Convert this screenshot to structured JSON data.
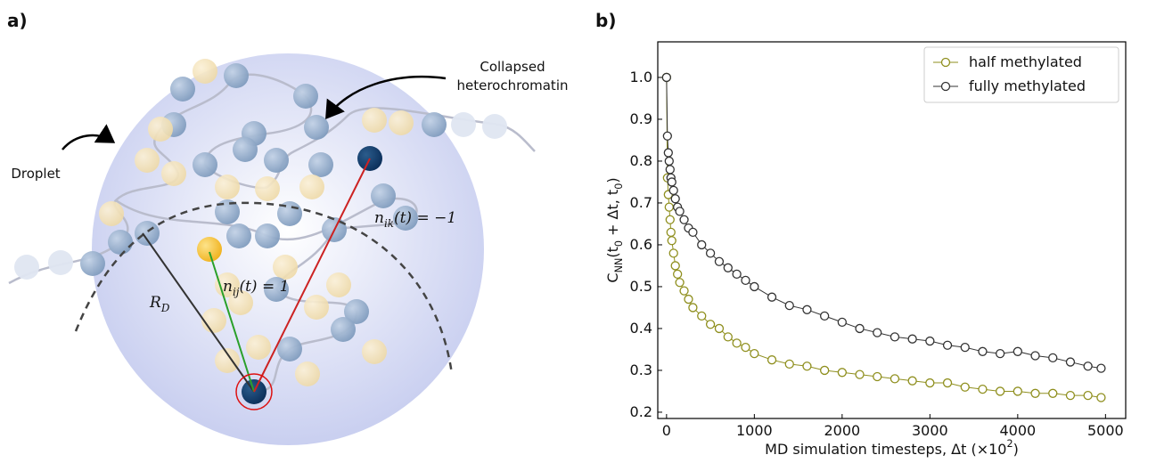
{
  "diagram": {
    "panel_label": "a)",
    "annotations": [
      "Collapsed",
      "heterochromatin",
      "Droplet",
      "n_{ij}(t) = 1",
      "n_{ik}(t) = −1",
      "R_D"
    ]
  },
  "chart_data": {
    "type": "scatter",
    "panel_label": "b)",
    "xlabel": "MD simulation timesteps, Δt (×10^2)",
    "ylabel": "C_{NN}(t_0 + Δt, t_0)",
    "x": [
      0,
      10,
      20,
      30,
      40,
      50,
      60,
      80,
      100,
      125,
      150,
      200,
      250,
      300,
      400,
      500,
      600,
      700,
      800,
      900,
      1000,
      1200,
      1400,
      1600,
      1800,
      2000,
      2200,
      2400,
      2600,
      2800,
      3000,
      3200,
      3400,
      3600,
      3800,
      4000,
      4200,
      4400,
      4600,
      4800,
      4950
    ],
    "series": [
      {
        "name": "half methylated",
        "color": "#8f8f1e",
        "values": [
          1.0,
          0.76,
          0.72,
          0.69,
          0.66,
          0.63,
          0.61,
          0.58,
          0.55,
          0.53,
          0.51,
          0.49,
          0.47,
          0.45,
          0.43,
          0.41,
          0.4,
          0.38,
          0.365,
          0.355,
          0.34,
          0.325,
          0.315,
          0.31,
          0.3,
          0.295,
          0.29,
          0.285,
          0.28,
          0.275,
          0.27,
          0.27,
          0.26,
          0.255,
          0.25,
          0.25,
          0.245,
          0.245,
          0.24,
          0.24,
          0.235
        ]
      },
      {
        "name": "fully methylated",
        "color": "#333333",
        "values": [
          1.0,
          0.86,
          0.82,
          0.8,
          0.78,
          0.76,
          0.75,
          0.73,
          0.71,
          0.69,
          0.68,
          0.66,
          0.64,
          0.63,
          0.6,
          0.58,
          0.56,
          0.545,
          0.53,
          0.515,
          0.5,
          0.475,
          0.455,
          0.445,
          0.43,
          0.415,
          0.4,
          0.39,
          0.38,
          0.375,
          0.37,
          0.36,
          0.355,
          0.345,
          0.34,
          0.345,
          0.335,
          0.33,
          0.32,
          0.31,
          0.305
        ]
      }
    ],
    "xlim": [
      -100,
      5230
    ],
    "ylim": [
      0.185,
      1.085
    ],
    "xticks": [
      0,
      1000,
      2000,
      3000,
      4000,
      5000
    ],
    "yticks": [
      0.2,
      0.3,
      0.4,
      0.5,
      0.6,
      0.7,
      0.8,
      0.9,
      {
        "value": 1,
        "label": "1.0"
      }
    ],
    "legend": "upper right"
  }
}
